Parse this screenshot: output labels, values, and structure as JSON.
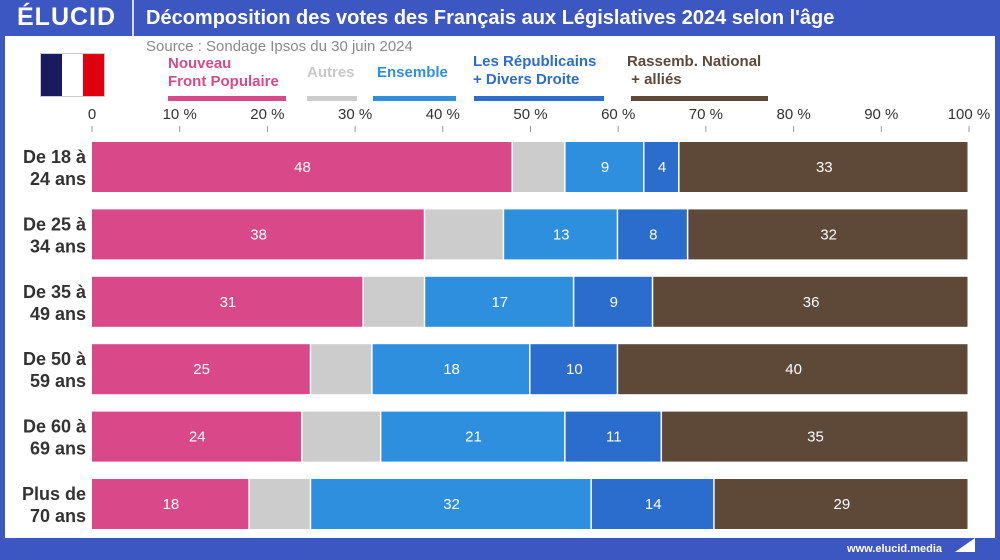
{
  "header": {
    "logo": "ÉLUCID",
    "title": "Décomposition des votes des Français aux Législatives 2024 selon l'âge"
  },
  "source": "Source : Sondage Ipsos du 30 juin 2024",
  "flag": {
    "colors": [
      "#1a1a5e",
      "#ffffff",
      "#e1000f"
    ]
  },
  "footer": {
    "url": "www.elucid.media"
  },
  "chart_data": {
    "type": "bar",
    "orientation": "horizontal",
    "stacked": true,
    "xlim": [
      0,
      100
    ],
    "x_ticks": [
      "0",
      "10 %",
      "20 %",
      "30 %",
      "40 %",
      "50 %",
      "60 %",
      "70 %",
      "80 %",
      "90 %",
      "100 %"
    ],
    "legend_placement": "top",
    "categories": [
      "De 18 à 24 ans",
      "De 25 à 34 ans",
      "De 35 à 49 ans",
      "De 50 à 59 ans",
      "De 60 à 69 ans",
      "Plus de 70 ans"
    ],
    "category_lines": [
      [
        "De 18 à",
        "24 ans"
      ],
      [
        "De 25 à",
        "34 ans"
      ],
      [
        "De 35 à",
        "49 ans"
      ],
      [
        "De 50 à",
        "59 ans"
      ],
      [
        "De 60 à",
        "69 ans"
      ],
      [
        "Plus de",
        "70 ans"
      ]
    ],
    "series": [
      {
        "name": "Nouveau Front Populaire",
        "legend_lines": [
          "Nouveau",
          "Front Populaire"
        ],
        "color": "#d9498a",
        "values": [
          48,
          38,
          31,
          25,
          24,
          18
        ],
        "labeled": true
      },
      {
        "name": "Autres",
        "legend_lines": [
          "Autres"
        ],
        "color": "#cccccc",
        "values": [
          6,
          9,
          7,
          7,
          9,
          7
        ],
        "labeled": false
      },
      {
        "name": "Ensemble",
        "legend_lines": [
          "Ensemble"
        ],
        "color": "#2f8fdf",
        "values": [
          9,
          13,
          17,
          18,
          21,
          32
        ],
        "labeled": true
      },
      {
        "name": "Les Républicains + Divers Droite",
        "legend_lines": [
          "Les Républicains",
          "+ Divers Droite"
        ],
        "color": "#2b6dcc",
        "values": [
          4,
          8,
          9,
          10,
          11,
          14
        ],
        "labeled": true
      },
      {
        "name": "Rassemb. National + alliés",
        "legend_lines": [
          "Rassemb. National",
          " + alliés"
        ],
        "color": "#5e4938",
        "values": [
          33,
          32,
          36,
          40,
          35,
          29
        ],
        "labeled": true
      }
    ]
  }
}
